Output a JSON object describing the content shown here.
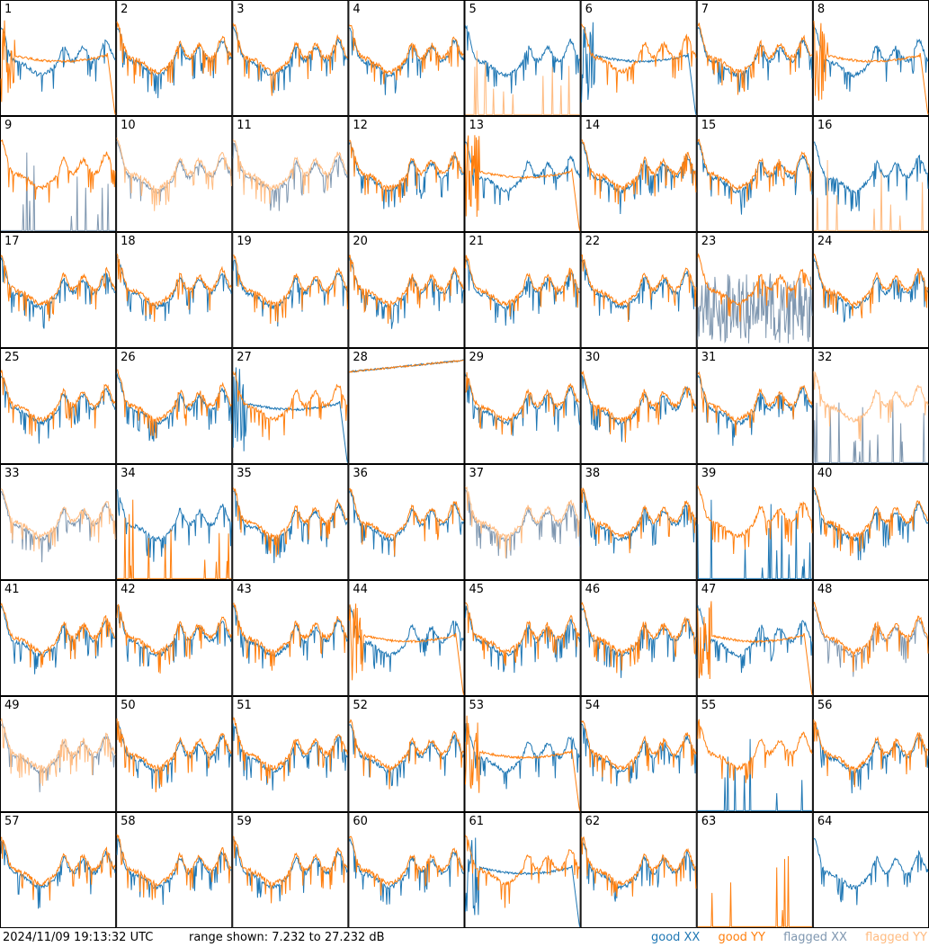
{
  "footer": {
    "timestamp": "2024/11/09 19:13:32 UTC",
    "range_text": "range shown: 7.232 to 27.232 dB"
  },
  "legend": [
    {
      "label": "good XX",
      "color": "#1f77b4"
    },
    {
      "label": "good YY",
      "color": "#ff7f0e"
    },
    {
      "label": "flagged XX",
      "color": "#7f97b0"
    },
    {
      "label": "flagged YY",
      "color": "#ffbb80"
    }
  ],
  "chart_data": {
    "type": "line",
    "unit": "dB",
    "ylim": [
      7.232,
      27.232
    ],
    "grid": {
      "rows": 8,
      "cols": 8
    },
    "colors": {
      "good_xx": "#1f77b4",
      "good_yy": "#ff7f0e",
      "flagged_xx": "#7f97b0",
      "flagged_yy": "#ffbb80"
    },
    "panels": [
      {
        "label": "1",
        "xx": "good",
        "yy": "good",
        "xx_shape": "normal",
        "yy_shape": "rolloff"
      },
      {
        "label": "2",
        "xx": "good",
        "yy": "good",
        "xx_shape": "normal",
        "yy_shape": "normal"
      },
      {
        "label": "3",
        "xx": "good",
        "yy": "good",
        "xx_shape": "normal",
        "yy_shape": "normal"
      },
      {
        "label": "4",
        "xx": "good",
        "yy": "good",
        "xx_shape": "normal",
        "yy_shape": "normal"
      },
      {
        "label": "5",
        "xx": "good",
        "yy": "flagged",
        "xx_shape": "normal",
        "yy_shape": "spikes"
      },
      {
        "label": "6",
        "xx": "good",
        "yy": "good",
        "xx_shape": "rolloff",
        "yy_shape": "normal"
      },
      {
        "label": "7",
        "xx": "good",
        "yy": "good",
        "xx_shape": "normal",
        "yy_shape": "normal"
      },
      {
        "label": "8",
        "xx": "good",
        "yy": "good",
        "xx_shape": "normal",
        "yy_shape": "rolloff"
      },
      {
        "label": "9",
        "xx": "flagged",
        "yy": "good",
        "xx_shape": "spikes",
        "yy_shape": "normal"
      },
      {
        "label": "10",
        "xx": "flagged",
        "yy": "flagged",
        "xx_shape": "normal",
        "yy_shape": "normal"
      },
      {
        "label": "11",
        "xx": "flagged",
        "yy": "flagged",
        "xx_shape": "normal",
        "yy_shape": "normal"
      },
      {
        "label": "12",
        "xx": "good",
        "yy": "good",
        "xx_shape": "normal",
        "yy_shape": "normal"
      },
      {
        "label": "13",
        "xx": "good",
        "yy": "good",
        "xx_shape": "normal",
        "yy_shape": "rolloff"
      },
      {
        "label": "14",
        "xx": "good",
        "yy": "good",
        "xx_shape": "normal",
        "yy_shape": "normal"
      },
      {
        "label": "15",
        "xx": "good",
        "yy": "good",
        "xx_shape": "normal",
        "yy_shape": "normal"
      },
      {
        "label": "16",
        "xx": "good",
        "yy": "flagged",
        "xx_shape": "normal",
        "yy_shape": "spikes"
      },
      {
        "label": "17",
        "xx": "good",
        "yy": "good",
        "xx_shape": "normal",
        "yy_shape": "normal"
      },
      {
        "label": "18",
        "xx": "good",
        "yy": "good",
        "xx_shape": "normal",
        "yy_shape": "normal"
      },
      {
        "label": "19",
        "xx": "good",
        "yy": "good",
        "xx_shape": "normal",
        "yy_shape": "normal"
      },
      {
        "label": "20",
        "xx": "good",
        "yy": "good",
        "xx_shape": "normal",
        "yy_shape": "normal"
      },
      {
        "label": "21",
        "xx": "good",
        "yy": "good",
        "xx_shape": "normal",
        "yy_shape": "normal"
      },
      {
        "label": "22",
        "xx": "good",
        "yy": "good",
        "xx_shape": "normal",
        "yy_shape": "normal"
      },
      {
        "label": "23",
        "xx": "flagged",
        "yy": "good",
        "xx_shape": "noisy",
        "yy_shape": "normal"
      },
      {
        "label": "24",
        "xx": "good",
        "yy": "good",
        "xx_shape": "normal",
        "yy_shape": "normal"
      },
      {
        "label": "25",
        "xx": "good",
        "yy": "good",
        "xx_shape": "normal",
        "yy_shape": "normal"
      },
      {
        "label": "26",
        "xx": "good",
        "yy": "good",
        "xx_shape": "normal",
        "yy_shape": "normal"
      },
      {
        "label": "27",
        "xx": "good",
        "yy": "good",
        "xx_shape": "rolloff",
        "yy_shape": "normal"
      },
      {
        "label": "28",
        "xx": "good",
        "yy": "good",
        "xx_shape": "flat",
        "yy_shape": "flat"
      },
      {
        "label": "29",
        "xx": "good",
        "yy": "good",
        "xx_shape": "normal",
        "yy_shape": "normal"
      },
      {
        "label": "30",
        "xx": "good",
        "yy": "good",
        "xx_shape": "normal",
        "yy_shape": "normal"
      },
      {
        "label": "31",
        "xx": "good",
        "yy": "good",
        "xx_shape": "normal",
        "yy_shape": "normal"
      },
      {
        "label": "32",
        "xx": "flagged",
        "yy": "flagged",
        "xx_shape": "spikes",
        "yy_shape": "normal"
      },
      {
        "label": "33",
        "xx": "flagged",
        "yy": "flagged",
        "xx_shape": "normal",
        "yy_shape": "normal"
      },
      {
        "label": "34",
        "xx": "good",
        "yy": "good",
        "xx_shape": "normal",
        "yy_shape": "spikes"
      },
      {
        "label": "35",
        "xx": "good",
        "yy": "good",
        "xx_shape": "normal",
        "yy_shape": "normal"
      },
      {
        "label": "36",
        "xx": "good",
        "yy": "good",
        "xx_shape": "normal",
        "yy_shape": "normal"
      },
      {
        "label": "37",
        "xx": "flagged",
        "yy": "flagged",
        "xx_shape": "normal",
        "yy_shape": "normal"
      },
      {
        "label": "38",
        "xx": "good",
        "yy": "good",
        "xx_shape": "normal",
        "yy_shape": "normal"
      },
      {
        "label": "39",
        "xx": "good",
        "yy": "good",
        "xx_shape": "spikes",
        "yy_shape": "normal"
      },
      {
        "label": "40",
        "xx": "good",
        "yy": "good",
        "xx_shape": "normal",
        "yy_shape": "normal"
      },
      {
        "label": "41",
        "xx": "good",
        "yy": "good",
        "xx_shape": "normal",
        "yy_shape": "normal"
      },
      {
        "label": "42",
        "xx": "good",
        "yy": "good",
        "xx_shape": "normal",
        "yy_shape": "normal"
      },
      {
        "label": "43",
        "xx": "good",
        "yy": "good",
        "xx_shape": "normal",
        "yy_shape": "normal"
      },
      {
        "label": "44",
        "xx": "good",
        "yy": "good",
        "xx_shape": "normal",
        "yy_shape": "rolloff"
      },
      {
        "label": "45",
        "xx": "good",
        "yy": "good",
        "xx_shape": "normal",
        "yy_shape": "normal"
      },
      {
        "label": "46",
        "xx": "good",
        "yy": "good",
        "xx_shape": "normal",
        "yy_shape": "normal"
      },
      {
        "label": "47",
        "xx": "good",
        "yy": "good",
        "xx_shape": "normal",
        "yy_shape": "rolloff"
      },
      {
        "label": "48",
        "xx": "flagged",
        "yy": "good",
        "xx_shape": "normal",
        "yy_shape": "normal"
      },
      {
        "label": "49",
        "xx": "flagged",
        "yy": "flagged",
        "xx_shape": "normal",
        "yy_shape": "normal"
      },
      {
        "label": "50",
        "xx": "good",
        "yy": "good",
        "xx_shape": "normal",
        "yy_shape": "normal"
      },
      {
        "label": "51",
        "xx": "good",
        "yy": "good",
        "xx_shape": "normal",
        "yy_shape": "normal"
      },
      {
        "label": "52",
        "xx": "good",
        "yy": "good",
        "xx_shape": "normal",
        "yy_shape": "normal"
      },
      {
        "label": "53",
        "xx": "good",
        "yy": "good",
        "xx_shape": "normal",
        "yy_shape": "rolloff"
      },
      {
        "label": "54",
        "xx": "good",
        "yy": "good",
        "xx_shape": "normal",
        "yy_shape": "normal"
      },
      {
        "label": "55",
        "xx": "good",
        "yy": "good",
        "xx_shape": "spikes",
        "yy_shape": "normal"
      },
      {
        "label": "56",
        "xx": "good",
        "yy": "good",
        "xx_shape": "normal",
        "yy_shape": "normal"
      },
      {
        "label": "57",
        "xx": "good",
        "yy": "good",
        "xx_shape": "normal",
        "yy_shape": "normal"
      },
      {
        "label": "58",
        "xx": "good",
        "yy": "good",
        "xx_shape": "normal",
        "yy_shape": "normal"
      },
      {
        "label": "59",
        "xx": "good",
        "yy": "good",
        "xx_shape": "normal",
        "yy_shape": "normal"
      },
      {
        "label": "60",
        "xx": "good",
        "yy": "good",
        "xx_shape": "normal",
        "yy_shape": "normal"
      },
      {
        "label": "61",
        "xx": "good",
        "yy": "good",
        "xx_shape": "rolloff",
        "yy_shape": "normal"
      },
      {
        "label": "62",
        "xx": "good",
        "yy": "good",
        "xx_shape": "normal",
        "yy_shape": "normal"
      },
      {
        "label": "63",
        "xx": "good",
        "yy": "good",
        "xx_shape": "none",
        "yy_shape": "spikes"
      },
      {
        "label": "64",
        "xx": "good",
        "yy": "good",
        "xx_shape": "normal",
        "yy_shape": "none"
      }
    ]
  }
}
